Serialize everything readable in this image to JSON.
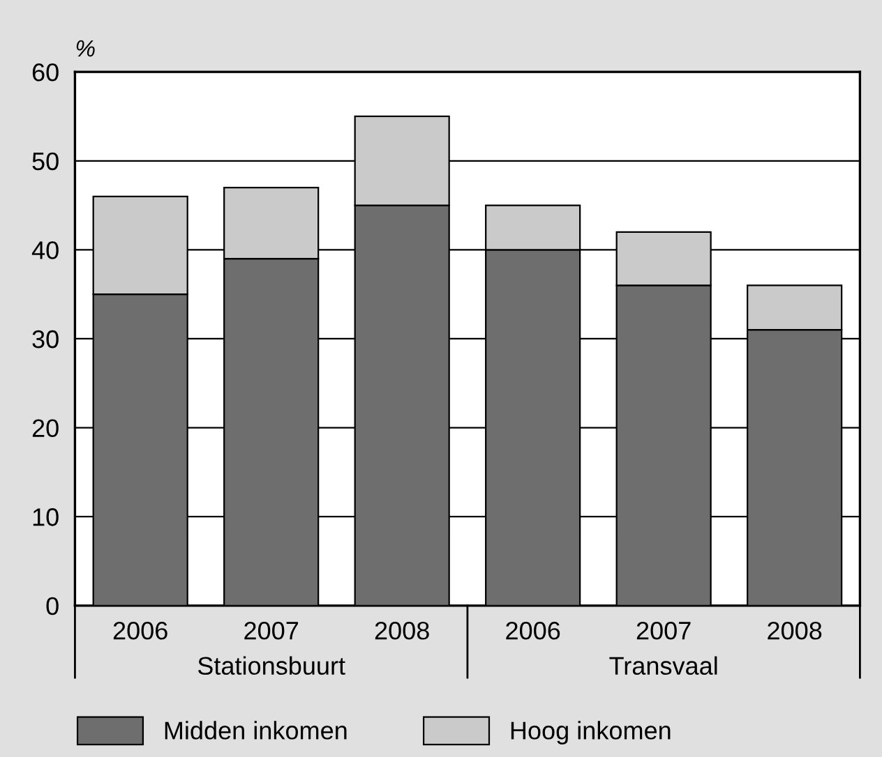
{
  "chart_data": {
    "type": "bar",
    "stacked": true,
    "ylabel": "%",
    "categories": [
      "2006",
      "2007",
      "2008",
      "2006",
      "2007",
      "2008"
    ],
    "series": [
      {
        "name": "Midden inkomen",
        "color": "#6e6e6e",
        "values": [
          35,
          39,
          45,
          40,
          36,
          31
        ]
      },
      {
        "name": "Hoog inkomen",
        "color": "#cacaca",
        "values": [
          11,
          8,
          10,
          5,
          6,
          5
        ]
      }
    ],
    "annotations": [
      "Stationsbuurt",
      "Transvaal"
    ],
    "ylim": [
      0,
      60
    ],
    "yticks": [
      0,
      10,
      20,
      30,
      40,
      50,
      60
    ],
    "grid": "y",
    "legend": "bottom"
  }
}
